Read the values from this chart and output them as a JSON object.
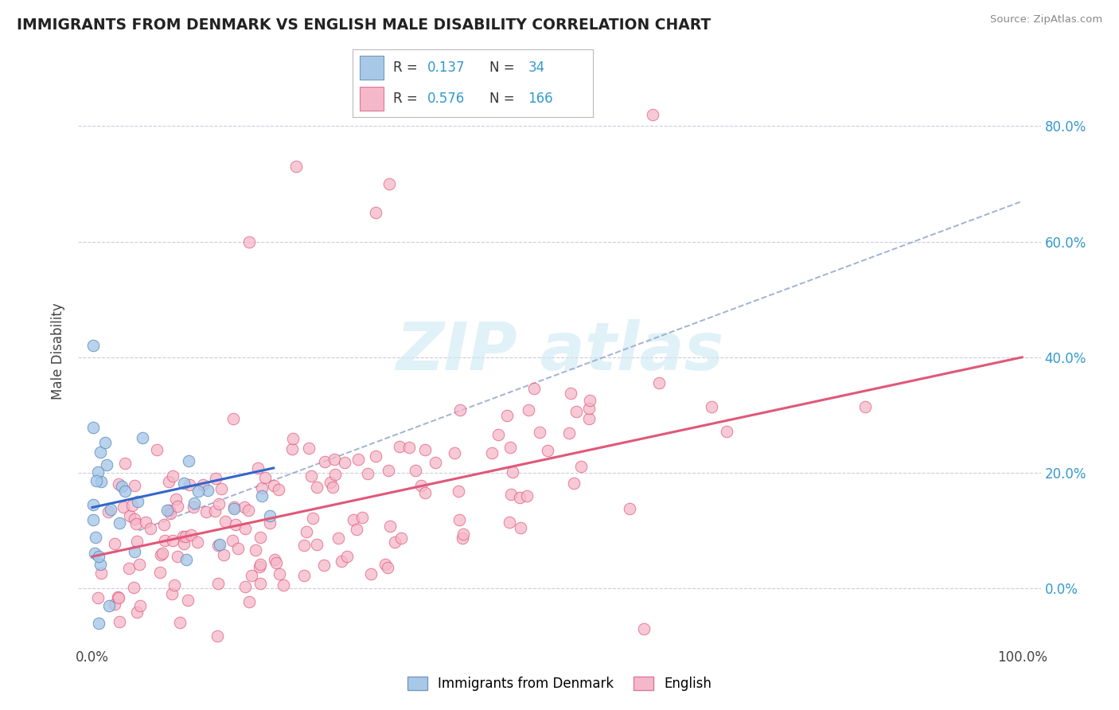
{
  "title": "IMMIGRANTS FROM DENMARK VS ENGLISH MALE DISABILITY CORRELATION CHART",
  "source": "Source: ZipAtlas.com",
  "ylabel": "Male Disability",
  "blue_color": "#a8c8e8",
  "pink_color": "#f5b8ca",
  "blue_line_color": "#3366cc",
  "pink_line_color": "#e05878",
  "dashed_color": "#99aacc",
  "r_blue": "0.137",
  "n_blue": "34",
  "r_pink": "0.576",
  "n_pink": "166",
  "background_color": "#ffffff",
  "watermark_color": "#cce8f4",
  "legend_label_blue": "Immigrants from Denmark",
  "legend_label_pink": "English",
  "y_tick_labels": [
    "0.0%",
    "20.0%",
    "40.0%",
    "60.0%",
    "80.0%"
  ],
  "y_tick_vals": [
    0.0,
    0.2,
    0.4,
    0.6,
    0.8
  ],
  "xlim": [
    -0.015,
    1.02
  ],
  "ylim": [
    -0.1,
    0.92
  ]
}
